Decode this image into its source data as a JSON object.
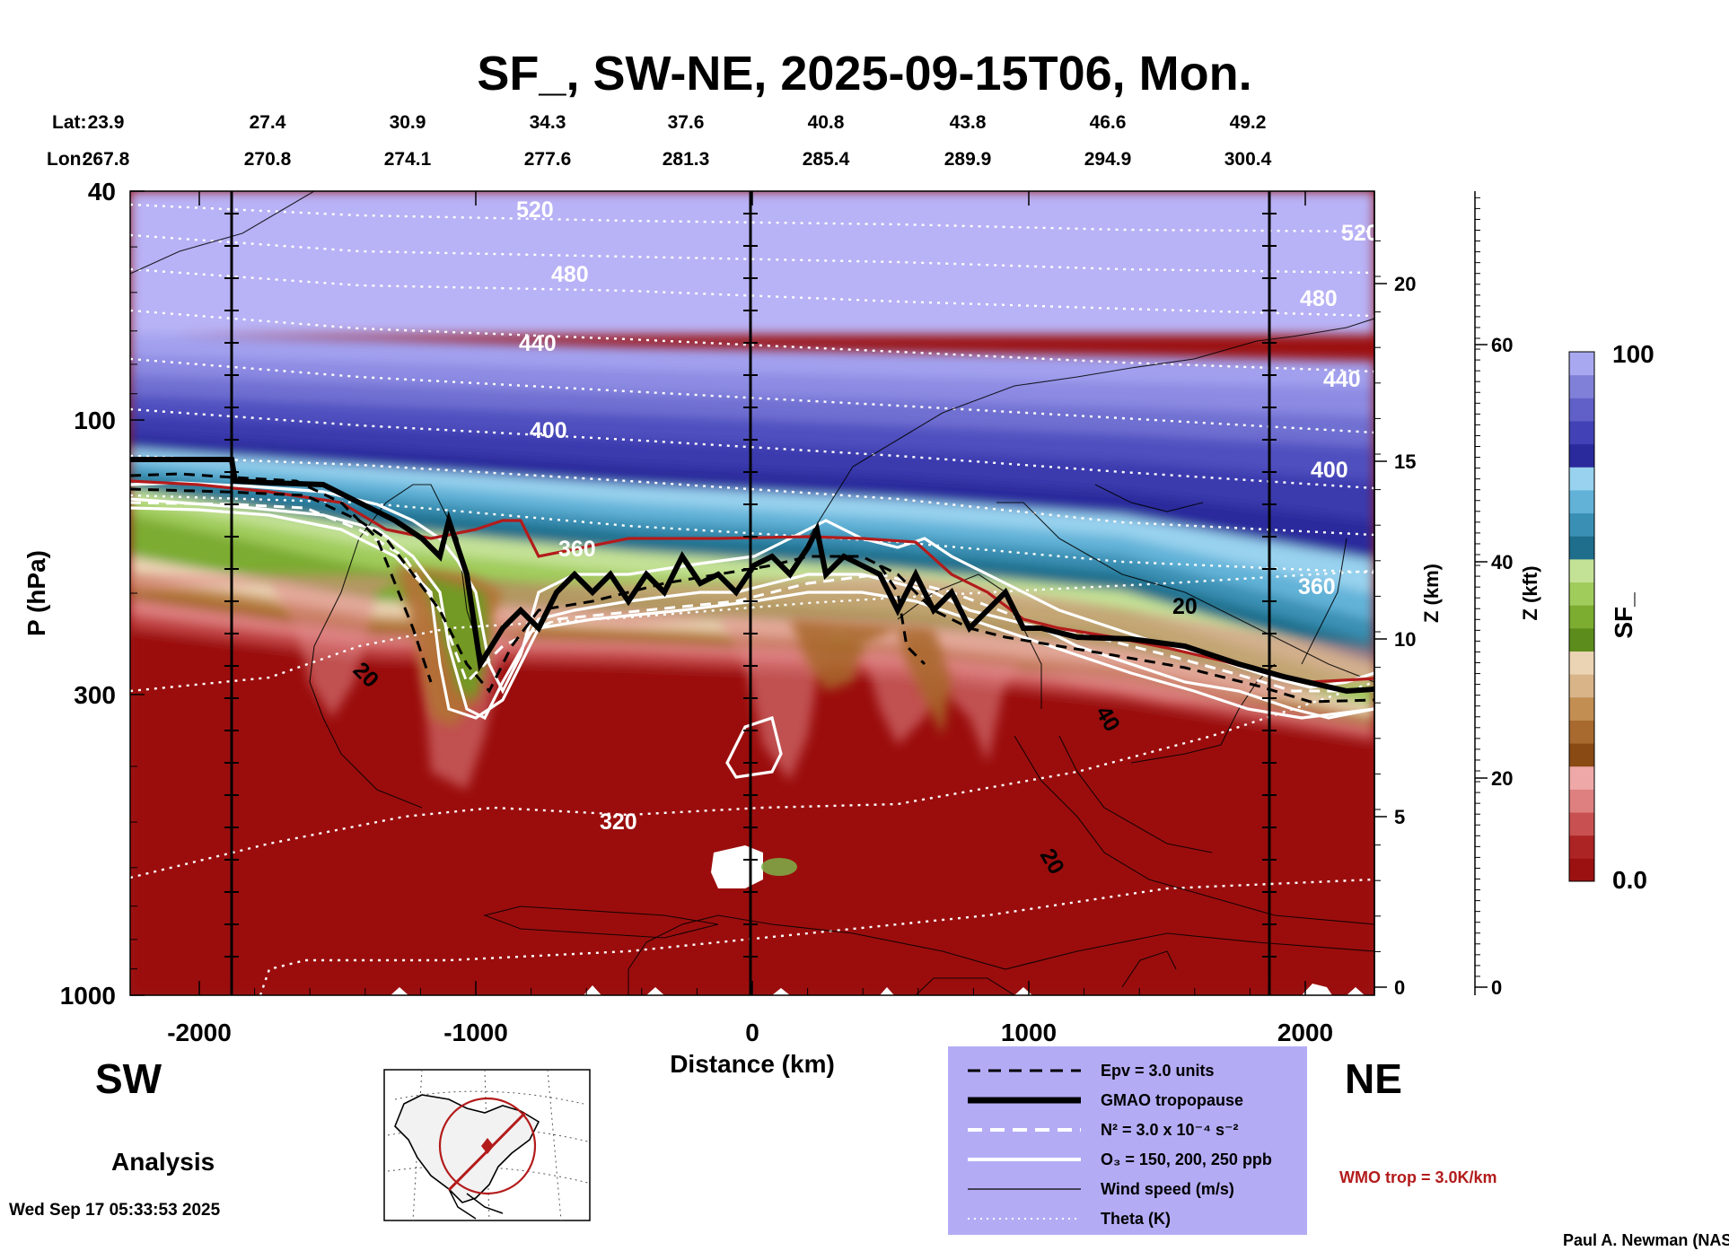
{
  "chart_data": {
    "type": "heatmap",
    "title": "SF_, SW-NE, 2025-09-15T06, Mon.",
    "xlabel": "Distance (km)",
    "ylabel": "P (hPa)",
    "xlim": [
      -2250,
      2250
    ],
    "ylim": [
      1000,
      40
    ],
    "y_scale": "log",
    "x_ticks": [
      "-2000",
      "-1000",
      "0",
      "1000",
      "2000"
    ],
    "y_ticks": [
      "40",
      "100",
      "300",
      "1000"
    ],
    "lat_label": "Lat:",
    "lon_label": "Lon:",
    "lat": [
      "23.9",
      "27.4",
      "30.9",
      "34.3",
      "37.6",
      "40.8",
      "43.8",
      "46.6",
      "49.2"
    ],
    "lon": [
      "267.8",
      "270.8",
      "274.1",
      "277.6",
      "281.3",
      "285.4",
      "289.9",
      "294.9",
      "300.4"
    ],
    "z_km_label": "Z (km)",
    "z_km_ticks": [
      "0",
      "5",
      "10",
      "15",
      "20"
    ],
    "z_kft_label": "Z (kft)",
    "z_kft_ticks": [
      "0",
      "20",
      "40",
      "60"
    ],
    "colorbar": {
      "label": "SF_",
      "min_label": "0.0",
      "max_label": "100",
      "colors": [
        "#9b1010",
        "#ad2424",
        "#c85050",
        "#de8080",
        "#eea8a8",
        "#8a4a14",
        "#a86a2e",
        "#c28e52",
        "#d8b488",
        "#ebd4b4",
        "#5c8c1c",
        "#7cac30",
        "#a0cc5c",
        "#c4e296",
        "#1e6e8c",
        "#3a90b4",
        "#62b2d8",
        "#98d2ee",
        "#2a2a9c",
        "#4242b6",
        "#6060c8",
        "#8080d8",
        "#a8a8f0"
      ]
    },
    "theta_labels": [
      "520",
      "480",
      "440",
      "400",
      "360",
      "320"
    ],
    "wind_labels": [
      "20",
      "20",
      "40",
      "20"
    ],
    "direction_left": "SW",
    "direction_right": "NE",
    "legend": [
      {
        "label": "Epv = 3.0 units",
        "style": "dashed-black"
      },
      {
        "label": "GMAO tropopause",
        "style": "thick-black"
      },
      {
        "label": "N² = 3.0 x 10⁻⁴ s⁻²",
        "style": "dashed-white"
      },
      {
        "label": "O₃ = 150, 200, 250 ppb",
        "style": "solid-white"
      },
      {
        "label": "Wind speed (m/s)",
        "style": "thin-black"
      },
      {
        "label": "Theta (K)",
        "style": "dotted-white"
      }
    ],
    "wmo_label": "WMO trop = 3.0K/km",
    "analysis_label": "Analysis",
    "timestamp": "Wed Sep 17 05:33:53 2025",
    "credit": "Paul A. Newman (NASA"
  },
  "colors": {
    "legend_bg": "#b3acf5",
    "wmo": "#b31b1b",
    "strat": "#b8b2f6"
  }
}
